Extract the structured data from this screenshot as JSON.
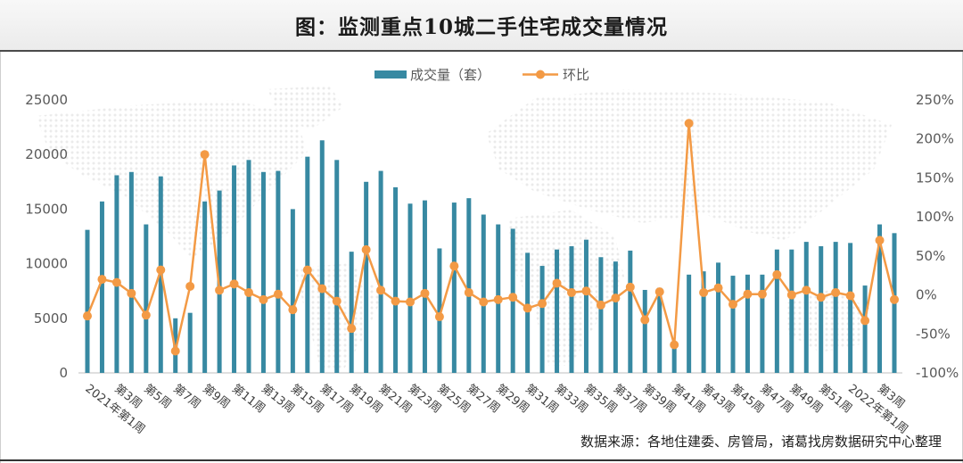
{
  "source": "数据来源：各地住建委、房管局，诸葛找房数据研究中心整理",
  "colors": {
    "bars": "#3789a2",
    "line": "#f39a45",
    "axis": "#bfbfbf"
  },
  "chart_data": {
    "type": "bar",
    "title": "图：监测重点10城二手住宅成交量情况",
    "legend": "top-center",
    "grid": false,
    "categories": [
      "2021年第1周",
      "",
      "第3周",
      "",
      "第5周",
      "",
      "第7周",
      "",
      "第9周",
      "",
      "第11周",
      "",
      "第13周",
      "",
      "第15周",
      "",
      "第17周",
      "",
      "第19周",
      "",
      "第21周",
      "",
      "第23周",
      "",
      "第25周",
      "",
      "第27周",
      "",
      "第29周",
      "",
      "第31周",
      "",
      "第33周",
      "",
      "第35周",
      "",
      "第37周",
      "",
      "第39周",
      "",
      "第41周",
      "",
      "第43周",
      "",
      "第45周",
      "",
      "第47周",
      "",
      "第49周",
      "",
      "第51周",
      "",
      "2022年第1周",
      "",
      "第3周",
      ""
    ],
    "series": [
      {
        "name": "成交量（套）",
        "type": "bar",
        "axis": "left",
        "values": [
          13100,
          15700,
          18100,
          18400,
          13600,
          18000,
          5000,
          5500,
          15700,
          16700,
          19000,
          19500,
          18400,
          18500,
          15000,
          19800,
          21300,
          19500,
          11100,
          17500,
          18500,
          17000,
          15500,
          15800,
          11400,
          15600,
          16000,
          14500,
          13600,
          13200,
          11000,
          9800,
          11300,
          11600,
          12200,
          10600,
          10200,
          11200,
          7600,
          7800,
          2800,
          9000,
          9300,
          10100,
          8900,
          9000,
          9000,
          11300,
          11300,
          12000,
          11600,
          12000,
          11900,
          8000,
          13600,
          12800
        ]
      },
      {
        "name": "环比",
        "type": "line",
        "axis": "right",
        "values": [
          -27,
          20,
          16,
          2,
          -26,
          32,
          -72,
          11,
          180,
          6,
          14,
          3,
          -6,
          1,
          -19,
          32,
          8,
          -8,
          -43,
          58,
          6,
          -8,
          -9,
          2,
          -28,
          37,
          3,
          -9,
          -6,
          -3,
          -17,
          -11,
          15,
          3,
          5,
          -13,
          -4,
          10,
          -32,
          4,
          -64,
          220,
          3,
          9,
          -12,
          1,
          1,
          26,
          0,
          6,
          -3,
          3,
          -1,
          -33,
          70,
          -6
        ]
      }
    ],
    "y_left": {
      "range": [
        0,
        25000
      ],
      "ticks": [
        "0",
        "5000",
        "10000",
        "15000",
        "20000",
        "25000"
      ]
    },
    "y_right": {
      "range": [
        -100,
        250
      ],
      "ticks": [
        "-100%",
        "-50%",
        "0%",
        "50%",
        "100%",
        "150%",
        "200%",
        "250%"
      ]
    }
  }
}
